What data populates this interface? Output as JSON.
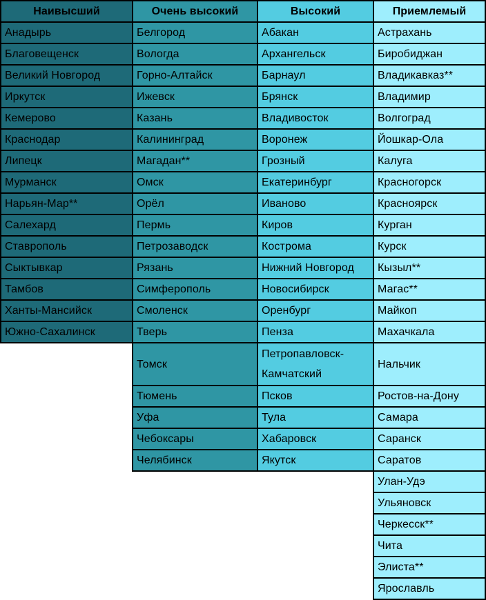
{
  "table": {
    "border_color": "#000000",
    "text_color": "#000000",
    "tall_row_note": "tall_row is the 0-based index of the double-height city cell in that column",
    "columns": [
      {
        "header": "Наивысший",
        "color": "#1e6a78",
        "tall_row": null,
        "cities": [
          "Анадырь",
          "Благовещенск",
          "Великий Новгород",
          "Иркутск",
          "Кемерово",
          "Краснодар",
          "Липецк",
          "Мурманск",
          "Нарьян-Мар**",
          "Салехард",
          "Ставрополь",
          "Сыктывкар",
          "Тамбов",
          "Ханты-Мансийск",
          "Южно-Сахалинск"
        ]
      },
      {
        "header": "Очень высокий",
        "color": "#2f96a4",
        "tall_row": 15,
        "cities": [
          "Белгород",
          "Вологда",
          "Горно-Алтайск",
          "Ижевск",
          "Казань",
          "Калининград",
          "Магадан**",
          "Омск",
          "Орёл",
          "Пермь",
          "Петрозаводск",
          "Рязань",
          "Симферополь",
          "Смоленск",
          "Тверь",
          "Томск",
          "Тюмень",
          "Уфа",
          "Чебоксары",
          "Челябинск"
        ]
      },
      {
        "header": "Высокий",
        "color": "#53cce1",
        "tall_row": 15,
        "cities": [
          "Абакан",
          "Архангельск",
          "Барнаул",
          "Брянск",
          "Владивосток",
          "Воронеж",
          "Грозный",
          "Екатеринбург",
          "Иваново",
          "Киров",
          "Кострома",
          "Нижний Новгород",
          "Новосибирск",
          "Оренбург",
          "Пенза",
          "Петропавловск-Камчатский",
          "Псков",
          "Тула",
          "Хабаровск",
          "Якутск"
        ]
      },
      {
        "header": "Приемлемый",
        "color": "#9eeefd",
        "tall_row": 15,
        "cities": [
          "Астрахань",
          "Биробиджан",
          "Владикавказ**",
          "Владимир",
          "Волгоград",
          "Йошкар-Ола",
          "Калуга",
          "Красногорск",
          "Красноярск",
          "Курган",
          "Курск",
          "Кызыл**",
          "Магас**",
          "Майкоп",
          "Махачкала",
          "Нальчик",
          "Ростов-на-Дону",
          "Самара",
          "Саранск",
          "Саратов",
          "Улан-Удэ",
          "Ульяновск",
          "Черкесск**",
          "Чита",
          "Элиста**",
          "Ярославль"
        ]
      }
    ]
  }
}
